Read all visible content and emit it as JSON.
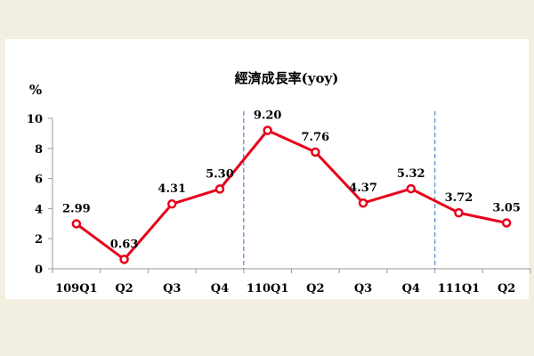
{
  "chart_data": {
    "type": "line",
    "title": "經濟成長率(yoy)",
    "ylabel": "%",
    "xlabel": "",
    "categories": [
      "109Q1",
      "Q2",
      "Q3",
      "Q4",
      "110Q1",
      "Q2",
      "Q3",
      "Q4",
      "111Q1",
      "Q2"
    ],
    "values": [
      2.99,
      0.63,
      4.31,
      5.3,
      9.2,
      7.76,
      4.37,
      5.32,
      3.72,
      3.05
    ],
    "value_labels": [
      "2.99",
      "0.63",
      "4.31",
      "5.30",
      "9.20",
      "7.76",
      "4.37",
      "5.32",
      "3.72",
      "3.05"
    ],
    "ylim": [
      0,
      10
    ],
    "yticks": [
      "0",
      "2",
      "4",
      "6",
      "8",
      "10"
    ],
    "grid": false,
    "legend": "none",
    "year_dividers_after": [
      "Q4",
      "Q4"
    ],
    "colors": {
      "line": "#e8001a",
      "divider": "#5b8fd1",
      "axis": "#999999",
      "background": "#f3efe0"
    }
  }
}
